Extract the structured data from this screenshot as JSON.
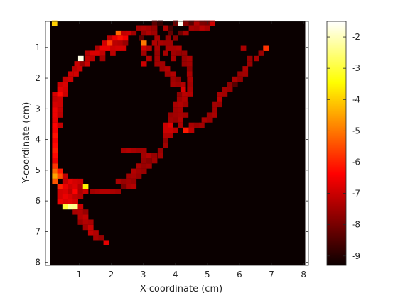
{
  "chart_data": {
    "type": "heatmap",
    "title": "",
    "xlabel": "X-coordinate (cm)",
    "ylabel": "Y-coordinate (cm)",
    "xlim": [
      -0.05,
      8.15
    ],
    "ylim": [
      8.1,
      0.15
    ],
    "y_axis_direction": "down",
    "xticks": [
      1,
      2,
      3,
      4,
      5,
      6,
      7,
      8
    ],
    "yticks": [
      1,
      2,
      3,
      4,
      5,
      6,
      7,
      8
    ],
    "grid": false,
    "colormap": "hot",
    "colorbar": {
      "location": "right",
      "range": [
        -9.3,
        -1.5
      ],
      "ticks": [
        -9,
        -8,
        -7,
        -6,
        -5,
        -4,
        -3,
        -2
      ]
    },
    "cell_size": 0.164,
    "background_value": -9.3,
    "cells": [
      [
        0.23,
        0.2,
        -4.0
      ],
      [
        4.17,
        0.2,
        -1.6
      ],
      [
        3.35,
        0.2,
        -8.3
      ],
      [
        3.53,
        0.2,
        -8.8
      ],
      [
        4.0,
        0.2,
        -8.1
      ],
      [
        4.33,
        0.2,
        -7.8
      ],
      [
        4.5,
        0.2,
        -8.4
      ],
      [
        4.66,
        0.2,
        -7.3
      ],
      [
        4.83,
        0.2,
        -7.9
      ],
      [
        4.99,
        0.2,
        -8.0
      ],
      [
        5.15,
        0.2,
        -7.0
      ],
      [
        2.86,
        0.36,
        -7.4
      ],
      [
        3.02,
        0.36,
        -7.3
      ],
      [
        3.18,
        0.36,
        -7.4
      ],
      [
        3.35,
        0.36,
        -7.6
      ],
      [
        3.69,
        0.36,
        -7.3
      ],
      [
        3.85,
        0.36,
        -8.6
      ],
      [
        4.5,
        0.36,
        -7.4
      ],
      [
        4.66,
        0.36,
        -7.5
      ],
      [
        4.83,
        0.36,
        -7.2
      ],
      [
        4.99,
        0.36,
        -7.4
      ],
      [
        2.22,
        0.53,
        -5.2
      ],
      [
        2.38,
        0.53,
        -7.1
      ],
      [
        2.54,
        0.53,
        -7.0
      ],
      [
        2.7,
        0.53,
        -7.5
      ],
      [
        3.02,
        0.53,
        -7.6
      ],
      [
        3.18,
        0.53,
        -7.3
      ],
      [
        3.35,
        0.53,
        -7.5
      ],
      [
        3.85,
        0.53,
        -8.2
      ],
      [
        4.17,
        0.53,
        -8.1
      ],
      [
        4.33,
        0.53,
        -7.4
      ],
      [
        1.96,
        0.7,
        -7.2
      ],
      [
        2.12,
        0.7,
        -6.6
      ],
      [
        2.28,
        0.7,
        -6.2
      ],
      [
        2.44,
        0.7,
        -6.5
      ],
      [
        2.94,
        0.7,
        -8.3
      ],
      [
        3.43,
        0.7,
        -7.4
      ],
      [
        3.77,
        0.7,
        -7.6
      ],
      [
        4.0,
        0.7,
        -7.8
      ],
      [
        1.8,
        0.86,
        -6.9
      ],
      [
        1.96,
        0.86,
        -5.7
      ],
      [
        2.12,
        0.86,
        -7.2
      ],
      [
        2.28,
        0.86,
        -7.3
      ],
      [
        2.44,
        0.86,
        -7.6
      ],
      [
        3.02,
        0.86,
        -5.0
      ],
      [
        3.35,
        0.86,
        -7.3
      ],
      [
        3.53,
        0.86,
        -7.4
      ],
      [
        3.69,
        0.86,
        -7.5
      ],
      [
        3.85,
        0.86,
        -7.5
      ],
      [
        1.57,
        1.03,
        -7.4
      ],
      [
        1.73,
        1.03,
        -6.6
      ],
      [
        1.89,
        1.03,
        -6.6
      ],
      [
        2.05,
        1.03,
        -7.0
      ],
      [
        2.21,
        1.03,
        -6.9
      ],
      [
        2.37,
        1.03,
        -6.9
      ],
      [
        3.02,
        1.03,
        -7.0
      ],
      [
        3.18,
        1.03,
        -7.3
      ],
      [
        3.43,
        1.03,
        -7.4
      ],
      [
        3.77,
        1.03,
        -7.4
      ],
      [
        3.94,
        1.03,
        -7.4
      ],
      [
        4.11,
        1.03,
        -7.3
      ],
      [
        6.12,
        1.03,
        -7.4
      ],
      [
        6.82,
        1.03,
        -5.8
      ],
      [
        1.25,
        1.19,
        -7.2
      ],
      [
        1.41,
        1.19,
        -6.8
      ],
      [
        1.57,
        1.19,
        -6.8
      ],
      [
        1.73,
        1.19,
        -7.1
      ],
      [
        2.05,
        1.19,
        -7.2
      ],
      [
        3.02,
        1.19,
        -7.5
      ],
      [
        3.43,
        1.19,
        -7.6
      ],
      [
        3.69,
        1.19,
        -7.4
      ],
      [
        3.94,
        1.19,
        -7.5
      ],
      [
        4.11,
        1.19,
        -7.6
      ],
      [
        4.28,
        1.19,
        -7.6
      ],
      [
        6.67,
        1.19,
        -7.6
      ],
      [
        1.05,
        1.36,
        -1.7
      ],
      [
        1.25,
        1.36,
        -7.1
      ],
      [
        1.41,
        1.36,
        -7.2
      ],
      [
        1.73,
        1.36,
        -7.5
      ],
      [
        3.18,
        1.36,
        -7.3
      ],
      [
        3.43,
        1.36,
        -7.5
      ],
      [
        3.94,
        1.36,
        -7.4
      ],
      [
        4.28,
        1.36,
        -7.6
      ],
      [
        4.44,
        1.36,
        -7.4
      ],
      [
        6.53,
        1.36,
        -7.4
      ],
      [
        6.32,
        1.36,
        -7.6
      ],
      [
        0.93,
        1.53,
        -7.0
      ],
      [
        1.09,
        1.53,
        -7.6
      ],
      [
        1.25,
        1.53,
        -7.0
      ],
      [
        3.02,
        1.53,
        -7.0
      ],
      [
        3.43,
        1.53,
        -7.5
      ],
      [
        3.59,
        1.53,
        -7.5
      ],
      [
        4.28,
        1.53,
        -7.6
      ],
      [
        4.44,
        1.53,
        -7.5
      ],
      [
        6.32,
        1.53,
        -7.6
      ],
      [
        0.86,
        1.69,
        -7.2
      ],
      [
        1.02,
        1.69,
        -7.0
      ],
      [
        3.59,
        1.69,
        -7.5
      ],
      [
        3.75,
        1.69,
        -7.3
      ],
      [
        4.44,
        1.69,
        -7.7
      ],
      [
        6.18,
        1.69,
        -7.4
      ],
      [
        0.73,
        1.86,
        -7.0
      ],
      [
        0.9,
        1.86,
        -6.9
      ],
      [
        3.75,
        1.86,
        -7.5
      ],
      [
        3.92,
        1.86,
        -7.3
      ],
      [
        4.44,
        1.86,
        -7.4
      ],
      [
        6.02,
        1.86,
        -7.6
      ],
      [
        6.18,
        1.86,
        -7.5
      ],
      [
        0.56,
        2.03,
        -7.1
      ],
      [
        0.73,
        2.03,
        -7.0
      ],
      [
        3.92,
        2.03,
        -7.5
      ],
      [
        4.08,
        2.03,
        -7.7
      ],
      [
        4.45,
        2.03,
        -7.4
      ],
      [
        5.86,
        2.03,
        -7.4
      ],
      [
        6.02,
        2.03,
        -7.7
      ],
      [
        0.4,
        2.2,
        -7.0
      ],
      [
        0.56,
        2.2,
        -6.8
      ],
      [
        3.92,
        2.2,
        -7.4
      ],
      [
        4.08,
        2.2,
        -7.5
      ],
      [
        4.24,
        2.2,
        -7.3
      ],
      [
        4.45,
        2.2,
        -7.5
      ],
      [
        5.7,
        2.2,
        -7.7
      ],
      [
        5.86,
        2.2,
        -8.4
      ],
      [
        0.4,
        2.36,
        -6.7
      ],
      [
        0.56,
        2.36,
        -6.9
      ],
      [
        4.24,
        2.36,
        -6.8
      ],
      [
        4.45,
        2.36,
        -7.4
      ],
      [
        5.54,
        2.36,
        -7.5
      ],
      [
        5.7,
        2.36,
        -7.6
      ],
      [
        0.24,
        2.53,
        -6.9
      ],
      [
        0.4,
        2.53,
        -6.3
      ],
      [
        0.56,
        2.53,
        -7.0
      ],
      [
        4.13,
        2.53,
        -7.7
      ],
      [
        4.29,
        2.53,
        -7.2
      ],
      [
        4.45,
        2.53,
        -7.3
      ],
      [
        5.38,
        2.53,
        -7.4
      ],
      [
        5.54,
        2.53,
        -7.5
      ],
      [
        0.24,
        2.7,
        -7.1
      ],
      [
        0.4,
        2.7,
        -7.0
      ],
      [
        4.13,
        2.7,
        -7.5
      ],
      [
        4.29,
        2.7,
        -7.3
      ],
      [
        5.38,
        2.7,
        -7.2
      ],
      [
        0.24,
        2.86,
        -6.9
      ],
      [
        0.4,
        2.86,
        -7.0
      ],
      [
        4.0,
        2.86,
        -7.4
      ],
      [
        4.16,
        2.86,
        -7.3
      ],
      [
        4.32,
        2.86,
        -7.5
      ],
      [
        5.22,
        2.86,
        -7.5
      ],
      [
        5.38,
        2.86,
        -7.6
      ],
      [
        0.24,
        3.03,
        -6.6
      ],
      [
        0.4,
        3.03,
        -7.1
      ],
      [
        4.0,
        3.03,
        -7.5
      ],
      [
        4.16,
        3.03,
        -7.4
      ],
      [
        5.22,
        3.03,
        -7.5
      ],
      [
        0.24,
        3.2,
        -6.6
      ],
      [
        0.4,
        3.2,
        -7.2
      ],
      [
        3.85,
        3.2,
        -7.6
      ],
      [
        4.0,
        3.2,
        -7.5
      ],
      [
        4.16,
        3.2,
        -7.4
      ],
      [
        4.32,
        3.2,
        -7.5
      ],
      [
        5.06,
        3.2,
        -7.6
      ],
      [
        5.22,
        3.2,
        -7.4
      ],
      [
        0.24,
        3.36,
        -6.7
      ],
      [
        3.85,
        3.36,
        -7.5
      ],
      [
        4.0,
        3.36,
        -7.6
      ],
      [
        4.16,
        3.36,
        -7.3
      ],
      [
        4.9,
        3.36,
        -7.4
      ],
      [
        5.06,
        3.36,
        -7.6
      ],
      [
        0.24,
        3.53,
        -6.4
      ],
      [
        0.4,
        3.53,
        -7.1
      ],
      [
        3.69,
        3.53,
        -7.0
      ],
      [
        3.85,
        3.53,
        -6.7
      ],
      [
        4.16,
        3.53,
        -7.4
      ],
      [
        4.5,
        3.53,
        -7.4
      ],
      [
        4.66,
        3.53,
        -7.6
      ],
      [
        4.82,
        3.53,
        -7.5
      ],
      [
        0.24,
        3.69,
        -6.5
      ],
      [
        3.69,
        3.69,
        -7.0
      ],
      [
        3.85,
        3.69,
        -7.0
      ],
      [
        4.0,
        3.69,
        -7.2
      ],
      [
        4.33,
        3.69,
        -6.1
      ],
      [
        4.5,
        3.69,
        -7.2
      ],
      [
        0.24,
        3.86,
        -6.2
      ],
      [
        3.69,
        3.86,
        -7.3
      ],
      [
        3.85,
        3.86,
        -7.3
      ],
      [
        0.24,
        4.03,
        -6.5
      ],
      [
        3.69,
        4.03,
        -7.7
      ],
      [
        0.24,
        4.19,
        -6.3
      ],
      [
        3.69,
        4.19,
        -7.5
      ],
      [
        0.24,
        4.36,
        -6.1
      ],
      [
        2.38,
        4.36,
        -7.4
      ],
      [
        2.54,
        4.36,
        -7.3
      ],
      [
        2.7,
        4.36,
        -7.4
      ],
      [
        2.86,
        4.36,
        -7.5
      ],
      [
        3.02,
        4.36,
        -7.5
      ],
      [
        3.53,
        4.36,
        -7.6
      ],
      [
        0.24,
        4.53,
        -6.3
      ],
      [
        3.02,
        4.53,
        -7.5
      ],
      [
        3.18,
        4.53,
        -7.3
      ],
      [
        3.35,
        4.53,
        -7.6
      ],
      [
        3.53,
        4.53,
        -7.5
      ],
      [
        0.24,
        4.69,
        -6.6
      ],
      [
        3.02,
        4.69,
        -7.6
      ],
      [
        3.18,
        4.69,
        -7.8
      ],
      [
        3.35,
        4.69,
        -7.5
      ],
      [
        0.24,
        4.86,
        -5.8
      ],
      [
        2.86,
        4.86,
        -7.4
      ],
      [
        3.02,
        4.86,
        -7.6
      ],
      [
        3.18,
        4.86,
        -7.5
      ],
      [
        0.24,
        5.03,
        -5.2
      ],
      [
        0.4,
        5.03,
        -6.1
      ],
      [
        2.7,
        5.03,
        -7.3
      ],
      [
        2.86,
        5.03,
        -7.5
      ],
      [
        3.02,
        5.03,
        -7.6
      ],
      [
        0.24,
        5.19,
        -4.5
      ],
      [
        0.4,
        5.19,
        -5.5
      ],
      [
        0.56,
        5.19,
        -7.1
      ],
      [
        2.54,
        5.19,
        -7.5
      ],
      [
        2.7,
        5.19,
        -7.4
      ],
      [
        2.86,
        5.19,
        -7.6
      ],
      [
        0.24,
        5.36,
        -5.4
      ],
      [
        0.56,
        5.36,
        -7.1
      ],
      [
        0.72,
        5.36,
        -6.7
      ],
      [
        0.88,
        5.36,
        -6.9
      ],
      [
        1.04,
        5.36,
        -7.0
      ],
      [
        2.22,
        5.36,
        -7.4
      ],
      [
        2.38,
        5.36,
        -7.6
      ],
      [
        2.54,
        5.36,
        -7.5
      ],
      [
        2.7,
        5.36,
        -7.6
      ],
      [
        0.4,
        5.53,
        -6.0
      ],
      [
        0.56,
        5.53,
        -6.6
      ],
      [
        0.72,
        5.53,
        -7.0
      ],
      [
        0.88,
        5.53,
        -6.8
      ],
      [
        1.04,
        5.53,
        -7.3
      ],
      [
        1.2,
        5.53,
        -3.6
      ],
      [
        2.38,
        5.53,
        -8.0
      ],
      [
        2.54,
        5.53,
        -7.4
      ],
      [
        2.7,
        5.53,
        -7.3
      ],
      [
        0.4,
        5.69,
        -6.9
      ],
      [
        0.56,
        5.69,
        -6.8
      ],
      [
        0.72,
        5.69,
        -7.2
      ],
      [
        0.88,
        5.69,
        -6.4
      ],
      [
        1.04,
        5.69,
        -7.4
      ],
      [
        1.2,
        5.69,
        -7.0
      ],
      [
        1.41,
        5.69,
        -7.5
      ],
      [
        1.57,
        5.69,
        -7.4
      ],
      [
        1.73,
        5.69,
        -7.3
      ],
      [
        1.89,
        5.69,
        -7.3
      ],
      [
        2.05,
        5.69,
        -7.4
      ],
      [
        2.21,
        5.69,
        -7.5
      ],
      [
        0.4,
        5.86,
        -6.9
      ],
      [
        0.56,
        5.86,
        -6.6
      ],
      [
        0.72,
        5.86,
        -6.8
      ],
      [
        0.88,
        5.86,
        -7.1
      ],
      [
        1.04,
        5.86,
        -7.3
      ],
      [
        0.4,
        6.03,
        -6.6
      ],
      [
        0.56,
        6.03,
        -6.8
      ],
      [
        0.72,
        6.03,
        -6.7
      ],
      [
        0.88,
        6.03,
        -6.9
      ],
      [
        0.56,
        6.19,
        -3.0
      ],
      [
        0.72,
        6.19,
        -2.3
      ],
      [
        0.88,
        6.19,
        -2.4
      ],
      [
        1.04,
        6.19,
        -7.0
      ],
      [
        0.88,
        6.36,
        -7.4
      ],
      [
        1.04,
        6.36,
        -7.3
      ],
      [
        1.2,
        6.36,
        -7.6
      ],
      [
        1.04,
        6.53,
        -7.3
      ],
      [
        1.2,
        6.53,
        -7.1
      ],
      [
        1.04,
        6.69,
        -7.6
      ],
      [
        1.2,
        6.69,
        -7.3
      ],
      [
        1.36,
        6.69,
        -7.4
      ],
      [
        1.2,
        6.86,
        -7.5
      ],
      [
        1.36,
        6.86,
        -7.0
      ],
      [
        1.36,
        7.03,
        -7.1
      ],
      [
        1.52,
        7.03,
        -7.3
      ],
      [
        1.52,
        7.19,
        -7.4
      ],
      [
        1.68,
        7.19,
        -7.6
      ],
      [
        1.84,
        7.36,
        -6.7
      ]
    ]
  }
}
